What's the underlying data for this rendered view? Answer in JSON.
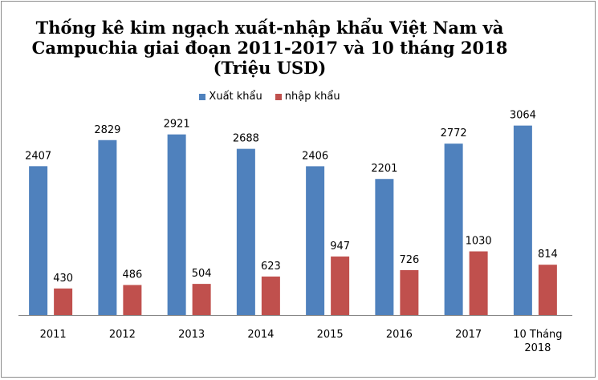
{
  "chart_data": {
    "type": "bar",
    "title_lines": [
      "Thống kê kim ngạch xuất-nhập khẩu Việt Nam và",
      "Campuchia giai đoạn 2011-2017 và 10 tháng 2018",
      "(Triệu USD)"
    ],
    "categories": [
      [
        "2011"
      ],
      [
        "2012"
      ],
      [
        "2013"
      ],
      [
        "2014"
      ],
      [
        "2015"
      ],
      [
        "2016"
      ],
      [
        "2017"
      ],
      [
        "10 Tháng",
        "2018"
      ]
    ],
    "series": [
      {
        "name": "Xuất khẩu",
        "color": "#4f81bd",
        "values": [
          2407,
          2829,
          2921,
          2688,
          2406,
          2201,
          2772,
          3064
        ]
      },
      {
        "name": "nhập khẩu",
        "color": "#c0504d",
        "values": [
          430,
          486,
          504,
          623,
          947,
          726,
          1030,
          814
        ]
      }
    ],
    "ylim": [
      0,
      3500
    ],
    "grid": false,
    "legend_position": "top"
  }
}
